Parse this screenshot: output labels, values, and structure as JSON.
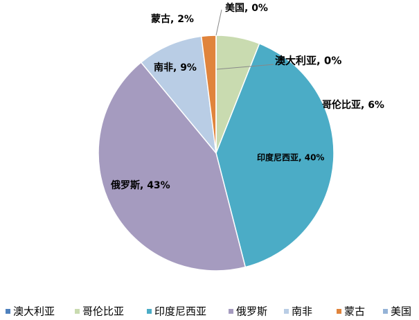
{
  "chart_data": {
    "type": "pie",
    "categories": [
      "澳大利亚",
      "哥伦比亚",
      "印度尼西亚",
      "俄罗斯",
      "南非",
      "蒙古",
      "美国"
    ],
    "values": [
      0,
      6,
      40,
      43,
      9,
      2,
      0
    ],
    "value_labels": [
      "澳大利亚, 0%",
      "哥伦比亚, 6%",
      "印度尼西亚, 40%",
      "俄罗斯, 43%",
      "南非, 9%",
      "蒙古, 2%",
      "美国, 0%"
    ],
    "colors": [
      "#4f81bd",
      "#c9dbb0",
      "#4bacc6",
      "#a59bbf",
      "#b9cde5",
      "#e0843c",
      "#95b3d7"
    ],
    "legend": "bottom"
  }
}
